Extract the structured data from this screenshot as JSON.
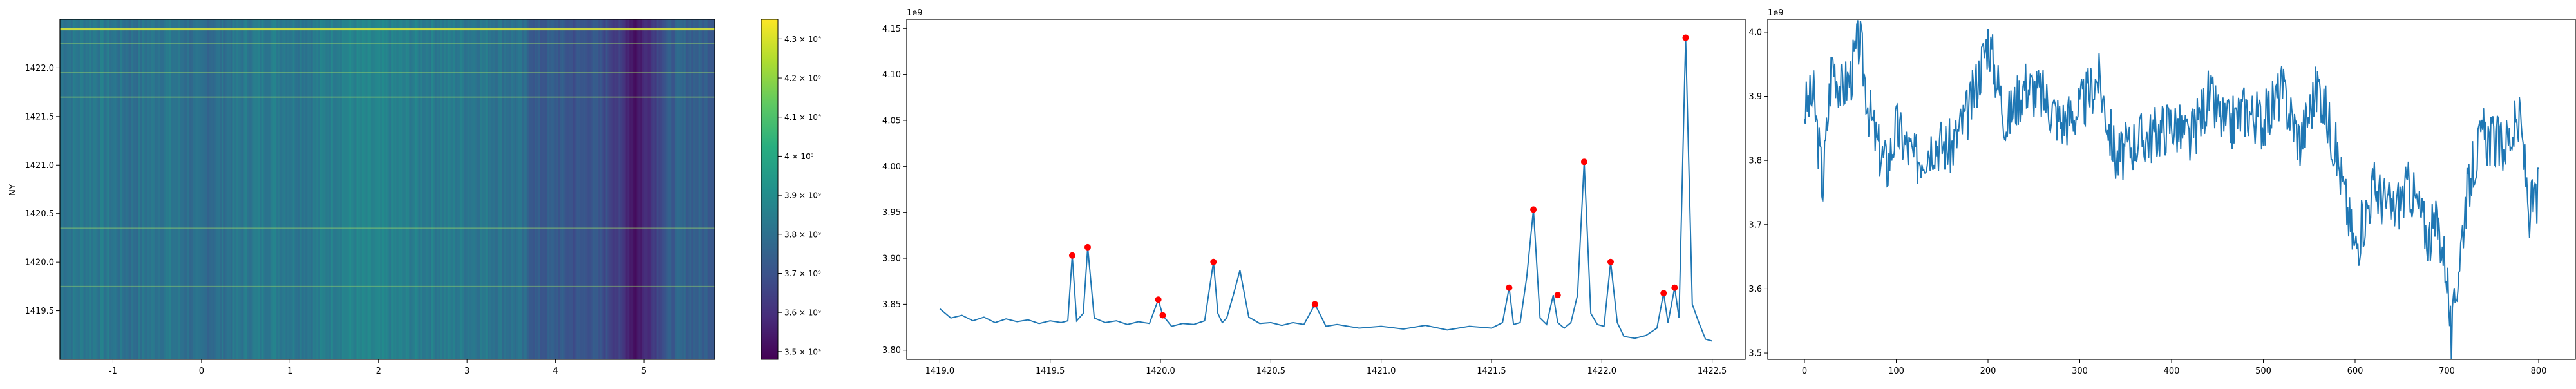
{
  "chart_data": [
    {
      "type": "heatmap",
      "title": "",
      "xlabel": "",
      "ylabel": "NY",
      "xlim": [
        -1.6,
        5.8
      ],
      "ylim": [
        1419.0,
        1422.5
      ],
      "xticks": [
        -1,
        0,
        1,
        2,
        3,
        4,
        5
      ],
      "yticks": [
        1419.5,
        1420.0,
        1420.5,
        1421.0,
        1421.5,
        1422.0
      ],
      "colormap": "viridis",
      "colorbar": {
        "min": 3480000000.0,
        "max": 4350000000.0,
        "ticks": [
          3.5,
          3.6,
          3.7,
          3.8,
          3.9,
          4.0,
          4.1,
          4.2,
          4.3
        ],
        "tick_labels": [
          "3.5 × 10⁹",
          "3.6 × 10⁹",
          "3.7 × 10⁹",
          "3.8 × 10⁹",
          "3.9 × 10⁹",
          "4 × 10⁹",
          "4.1 × 10⁹",
          "4.2 × 10⁹",
          "4.3 × 10⁹"
        ]
      },
      "column_profile": {
        "x": [
          -1.6,
          -1.2,
          -0.8,
          -0.4,
          0.0,
          0.4,
          0.8,
          1.2,
          1.6,
          2.0,
          2.4,
          2.8,
          3.2,
          3.6,
          3.8,
          4.0,
          4.2,
          4.4,
          4.6,
          4.8,
          4.9,
          5.0,
          5.2,
          5.4,
          5.8
        ],
        "values": [
          3.82,
          3.84,
          3.8,
          3.83,
          3.78,
          3.82,
          3.85,
          3.83,
          3.87,
          3.86,
          3.85,
          3.84,
          3.83,
          3.8,
          3.72,
          3.74,
          3.7,
          3.72,
          3.68,
          3.6,
          3.52,
          3.58,
          3.7,
          3.76,
          3.74
        ]
      },
      "bright_rows": [
        1419.75,
        1420.35,
        1421.7,
        1421.95,
        1422.25,
        1422.4
      ]
    },
    {
      "type": "line",
      "title": "",
      "xlabel": "",
      "ylabel": "",
      "offset_label": "1e9",
      "xlim": [
        1418.85,
        1422.65
      ],
      "ylim": [
        3.79,
        4.16
      ],
      "xticks": [
        1419.0,
        1419.5,
        1420.0,
        1420.5,
        1421.0,
        1421.5,
        1422.0,
        1422.5
      ],
      "yticks": [
        3.8,
        3.85,
        3.9,
        3.95,
        4.0,
        4.05,
        4.1,
        4.15
      ],
      "series": [
        {
          "color": "#1f77b4",
          "x": [
            1419.0,
            1419.05,
            1419.1,
            1419.15,
            1419.2,
            1419.25,
            1419.3,
            1419.35,
            1419.4,
            1419.45,
            1419.5,
            1419.55,
            1419.58,
            1419.6,
            1419.62,
            1419.65,
            1419.67,
            1419.7,
            1419.75,
            1419.8,
            1419.85,
            1419.9,
            1419.95,
            1419.99,
            1420.01,
            1420.05,
            1420.1,
            1420.15,
            1420.2,
            1420.24,
            1420.26,
            1420.28,
            1420.3,
            1420.33,
            1420.36,
            1420.4,
            1420.45,
            1420.5,
            1420.55,
            1420.6,
            1420.65,
            1420.7,
            1420.75,
            1420.8,
            1420.9,
            1421.0,
            1421.1,
            1421.2,
            1421.3,
            1421.4,
            1421.5,
            1421.55,
            1421.58,
            1421.6,
            1421.63,
            1421.66,
            1421.69,
            1421.72,
            1421.75,
            1421.78,
            1421.8,
            1421.83,
            1421.86,
            1421.89,
            1421.92,
            1421.95,
            1421.98,
            1422.01,
            1422.04,
            1422.07,
            1422.1,
            1422.15,
            1422.2,
            1422.25,
            1422.28,
            1422.3,
            1422.33,
            1422.35,
            1422.38,
            1422.41,
            1422.44,
            1422.47,
            1422.5
          ],
          "values": [
            3.845,
            3.835,
            3.838,
            3.832,
            3.836,
            3.83,
            3.834,
            3.831,
            3.833,
            3.829,
            3.832,
            3.83,
            3.832,
            3.903,
            3.832,
            3.84,
            3.912,
            3.835,
            3.83,
            3.832,
            3.828,
            3.831,
            3.829,
            3.855,
            3.838,
            3.826,
            3.829,
            3.828,
            3.832,
            3.896,
            3.84,
            3.83,
            3.835,
            3.86,
            3.887,
            3.836,
            3.829,
            3.83,
            3.827,
            3.83,
            3.828,
            3.85,
            3.826,
            3.828,
            3.824,
            3.826,
            3.823,
            3.827,
            3.822,
            3.826,
            3.824,
            3.83,
            3.868,
            3.828,
            3.83,
            3.88,
            3.953,
            3.835,
            3.828,
            3.86,
            3.83,
            3.824,
            3.83,
            3.86,
            4.005,
            3.84,
            3.828,
            3.826,
            3.896,
            3.83,
            3.815,
            3.813,
            3.816,
            3.824,
            3.862,
            3.83,
            3.868,
            3.835,
            4.14,
            3.85,
            3.83,
            3.812,
            3.81
          ]
        }
      ],
      "peaks": {
        "color": "#ff0000",
        "x": [
          1419.6,
          1419.67,
          1419.99,
          1420.01,
          1420.24,
          1420.7,
          1421.58,
          1421.69,
          1421.8,
          1421.92,
          1422.04,
          1422.28,
          1422.33,
          1422.38
        ],
        "values": [
          3.903,
          3.912,
          3.855,
          3.838,
          3.896,
          3.85,
          3.868,
          3.953,
          3.86,
          4.005,
          3.896,
          3.862,
          3.868,
          4.14
        ]
      }
    },
    {
      "type": "line",
      "title": "",
      "xlabel": "",
      "ylabel": "",
      "offset_label": "1e9",
      "xlim": [
        -40,
        840
      ],
      "ylim": [
        3.49,
        4.02
      ],
      "xticks": [
        0,
        100,
        200,
        300,
        400,
        500,
        600,
        700,
        800
      ],
      "yticks": [
        3.5,
        3.6,
        3.7,
        3.8,
        3.9,
        4.0
      ],
      "series": [
        {
          "color": "#1f77b4",
          "x": [
            0,
            10,
            20,
            30,
            40,
            50,
            60,
            70,
            80,
            90,
            100,
            120,
            140,
            160,
            180,
            200,
            220,
            240,
            260,
            280,
            300,
            320,
            340,
            360,
            380,
            400,
            420,
            440,
            460,
            480,
            500,
            520,
            540,
            560,
            580,
            600,
            620,
            640,
            660,
            680,
            690,
            700,
            705,
            710,
            720,
            730,
            740,
            760,
            780,
            790,
            800
          ],
          "values": [
            3.88,
            3.9,
            3.76,
            3.96,
            3.91,
            3.93,
            3.99,
            3.88,
            3.82,
            3.79,
            3.85,
            3.8,
            3.83,
            3.82,
            3.88,
            3.99,
            3.86,
            3.92,
            3.9,
            3.86,
            3.88,
            3.93,
            3.8,
            3.83,
            3.84,
            3.86,
            3.83,
            3.9,
            3.85,
            3.88,
            3.86,
            3.91,
            3.83,
            3.92,
            3.81,
            3.66,
            3.76,
            3.72,
            3.76,
            3.68,
            3.7,
            3.63,
            3.51,
            3.6,
            3.73,
            3.8,
            3.84,
            3.82,
            3.86,
            3.72,
            3.75
          ]
        }
      ]
    }
  ]
}
